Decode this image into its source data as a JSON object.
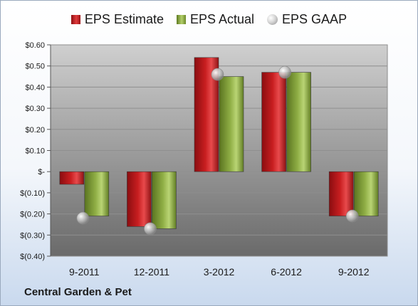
{
  "legend": {
    "estimate": "EPS Estimate",
    "actual": "EPS Actual",
    "gaap": "EPS GAAP"
  },
  "company": "Central Garden & Pet",
  "colors": {
    "estimate": "#c81e20",
    "actual": "#8fae45",
    "gaap": "#c8c8c8",
    "plot_top": "#cfcfcf",
    "plot_bottom": "#6a6a6a"
  },
  "chart_data": {
    "type": "bar",
    "categories": [
      "9-2011",
      "12-2011",
      "3-2012",
      "6-2012",
      "9-2012"
    ],
    "series": [
      {
        "name": "EPS Estimate",
        "values": [
          -0.06,
          -0.26,
          0.54,
          0.47,
          -0.21
        ]
      },
      {
        "name": "EPS Actual",
        "values": [
          -0.21,
          -0.27,
          0.45,
          0.47,
          -0.21
        ]
      },
      {
        "name": "EPS GAAP",
        "values": [
          -0.22,
          -0.27,
          0.46,
          0.47,
          -0.21
        ]
      }
    ],
    "y_ticks": [
      0.6,
      0.5,
      0.4,
      0.3,
      0.2,
      0.1,
      0,
      -0.1,
      -0.2,
      -0.3,
      -0.4
    ],
    "y_tick_labels": [
      "$0.60",
      "$0.50",
      "$0.40",
      "$0.30",
      "$0.20",
      "$0.10",
      "$-",
      "$(0.10)",
      "$(0.20)",
      "$(0.30)",
      "$(0.40)"
    ],
    "ylim": [
      -0.4,
      0.6
    ],
    "grid": true,
    "legend_position": "top"
  }
}
